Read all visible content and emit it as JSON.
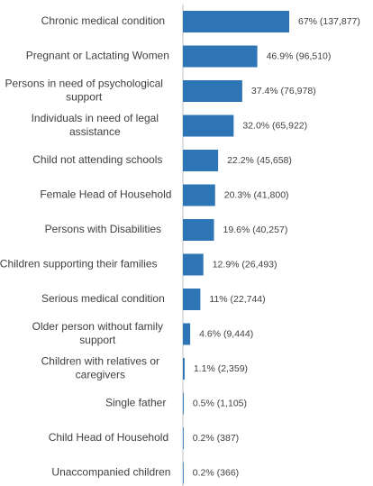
{
  "chart_data": {
    "type": "bar",
    "orientation": "horizontal",
    "categories": [
      "Chronic medical condition",
      "Pregnant or Lactating Women",
      "Persons in need of psychological support",
      "Individuals in need of legal assistance",
      "Child not attending schools",
      "Female Head of Household",
      "Persons with Disabilities",
      "Children supporting their families",
      "Serious medical condition",
      "Older person without family support",
      "Children with relatives or caregivers",
      "Single father",
      "Child Head of Household",
      "Unaccompanied children"
    ],
    "category_lines": [
      [
        "Chronic medical condition"
      ],
      [
        "Pregnant or Lactating Women"
      ],
      [
        "Persons in need of psychological",
        "support"
      ],
      [
        "Individuals in need of legal",
        "assistance"
      ],
      [
        "Child not attending schools"
      ],
      [
        "Female Head of Household"
      ],
      [
        "Persons with Disabilities"
      ],
      [
        "Children supporting their families"
      ],
      [
        "Serious medical condition"
      ],
      [
        "Older person without family",
        "support"
      ],
      [
        "Children with relatives or",
        "caregivers"
      ],
      [
        "Single father"
      ],
      [
        "Child Head of Household"
      ],
      [
        "Unaccompanied children"
      ]
    ],
    "values": [
      67,
      46.9,
      37.4,
      32.0,
      22.2,
      20.3,
      19.6,
      12.9,
      11,
      4.6,
      1.1,
      0.5,
      0.2,
      0.2
    ],
    "counts": [
      137877,
      96510,
      76978,
      65922,
      45658,
      41800,
      40257,
      26493,
      22744,
      9444,
      2359,
      1105,
      387,
      366
    ],
    "data_labels": [
      "67% (137,877)",
      "46.9% (96,510)",
      "37.4% (76,978)",
      "32.0% (65,922)",
      "22.2% (45,658)",
      "20.3% (41,800)",
      "19.6% (40,257)",
      "12.9% (26,493)",
      "11% (22,744)",
      "4.6% (9,444)",
      "1.1% (2,359)",
      "0.5% (1,105)",
      "0.2% (387)",
      "0.2% (366)"
    ],
    "xlim": [
      0,
      67
    ],
    "grid": false,
    "legend": "none",
    "bar_color": "#2E75B6",
    "axis_color": "#bfbfbf",
    "text_color": "#404040"
  }
}
